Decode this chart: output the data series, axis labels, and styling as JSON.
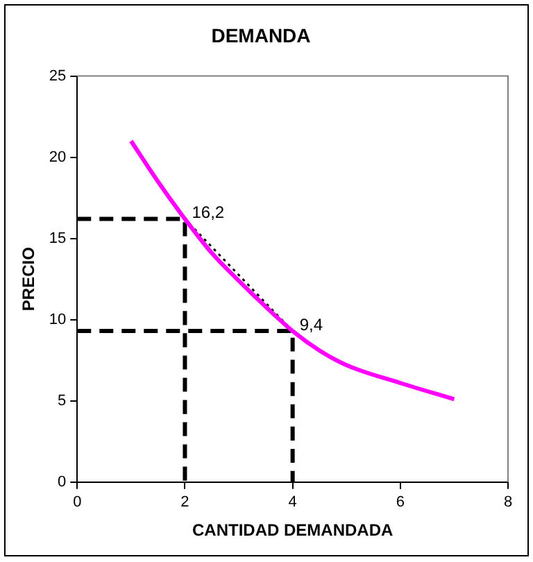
{
  "chart_data": {
    "type": "line",
    "title": "DEMANDA",
    "xlabel": "CANTIDAD DEMANDADA",
    "ylabel": "PRECIO",
    "xlim": [
      0,
      8
    ],
    "xticks": [
      0,
      2,
      4,
      6,
      8
    ],
    "ylim": [
      0,
      25
    ],
    "yticks": [
      0,
      5,
      10,
      15,
      20,
      25
    ],
    "grid": false,
    "legend": false,
    "marker": "none",
    "series": [
      {
        "color": "#ff00ff",
        "line_style": "solid",
        "x": [
          1,
          1.5,
          2,
          2.5,
          3,
          3.5,
          4,
          4.5,
          5,
          6,
          7
        ],
        "values": [
          21.0,
          18.5,
          16.2,
          14.1,
          12.4,
          10.8,
          9.3,
          8.1,
          7.2,
          6.1,
          5.1
        ]
      },
      {
        "color": "#000000",
        "line_style": "dashed",
        "x": [
          0,
          2,
          2
        ],
        "values": [
          16.2,
          16.2,
          0
        ]
      },
      {
        "color": "#000000",
        "line_style": "dashed",
        "x": [
          0,
          4,
          4
        ],
        "values": [
          9.3,
          9.3,
          0
        ]
      },
      {
        "color": "#000000",
        "line_style": "dotted",
        "x": [
          2,
          4
        ],
        "values": [
          16.2,
          9.3
        ]
      }
    ],
    "annotations": [
      {
        "text": "16,2",
        "x": 2,
        "y": 16.2
      },
      {
        "text": "9,4",
        "x": 4,
        "y": 9.3
      }
    ]
  }
}
